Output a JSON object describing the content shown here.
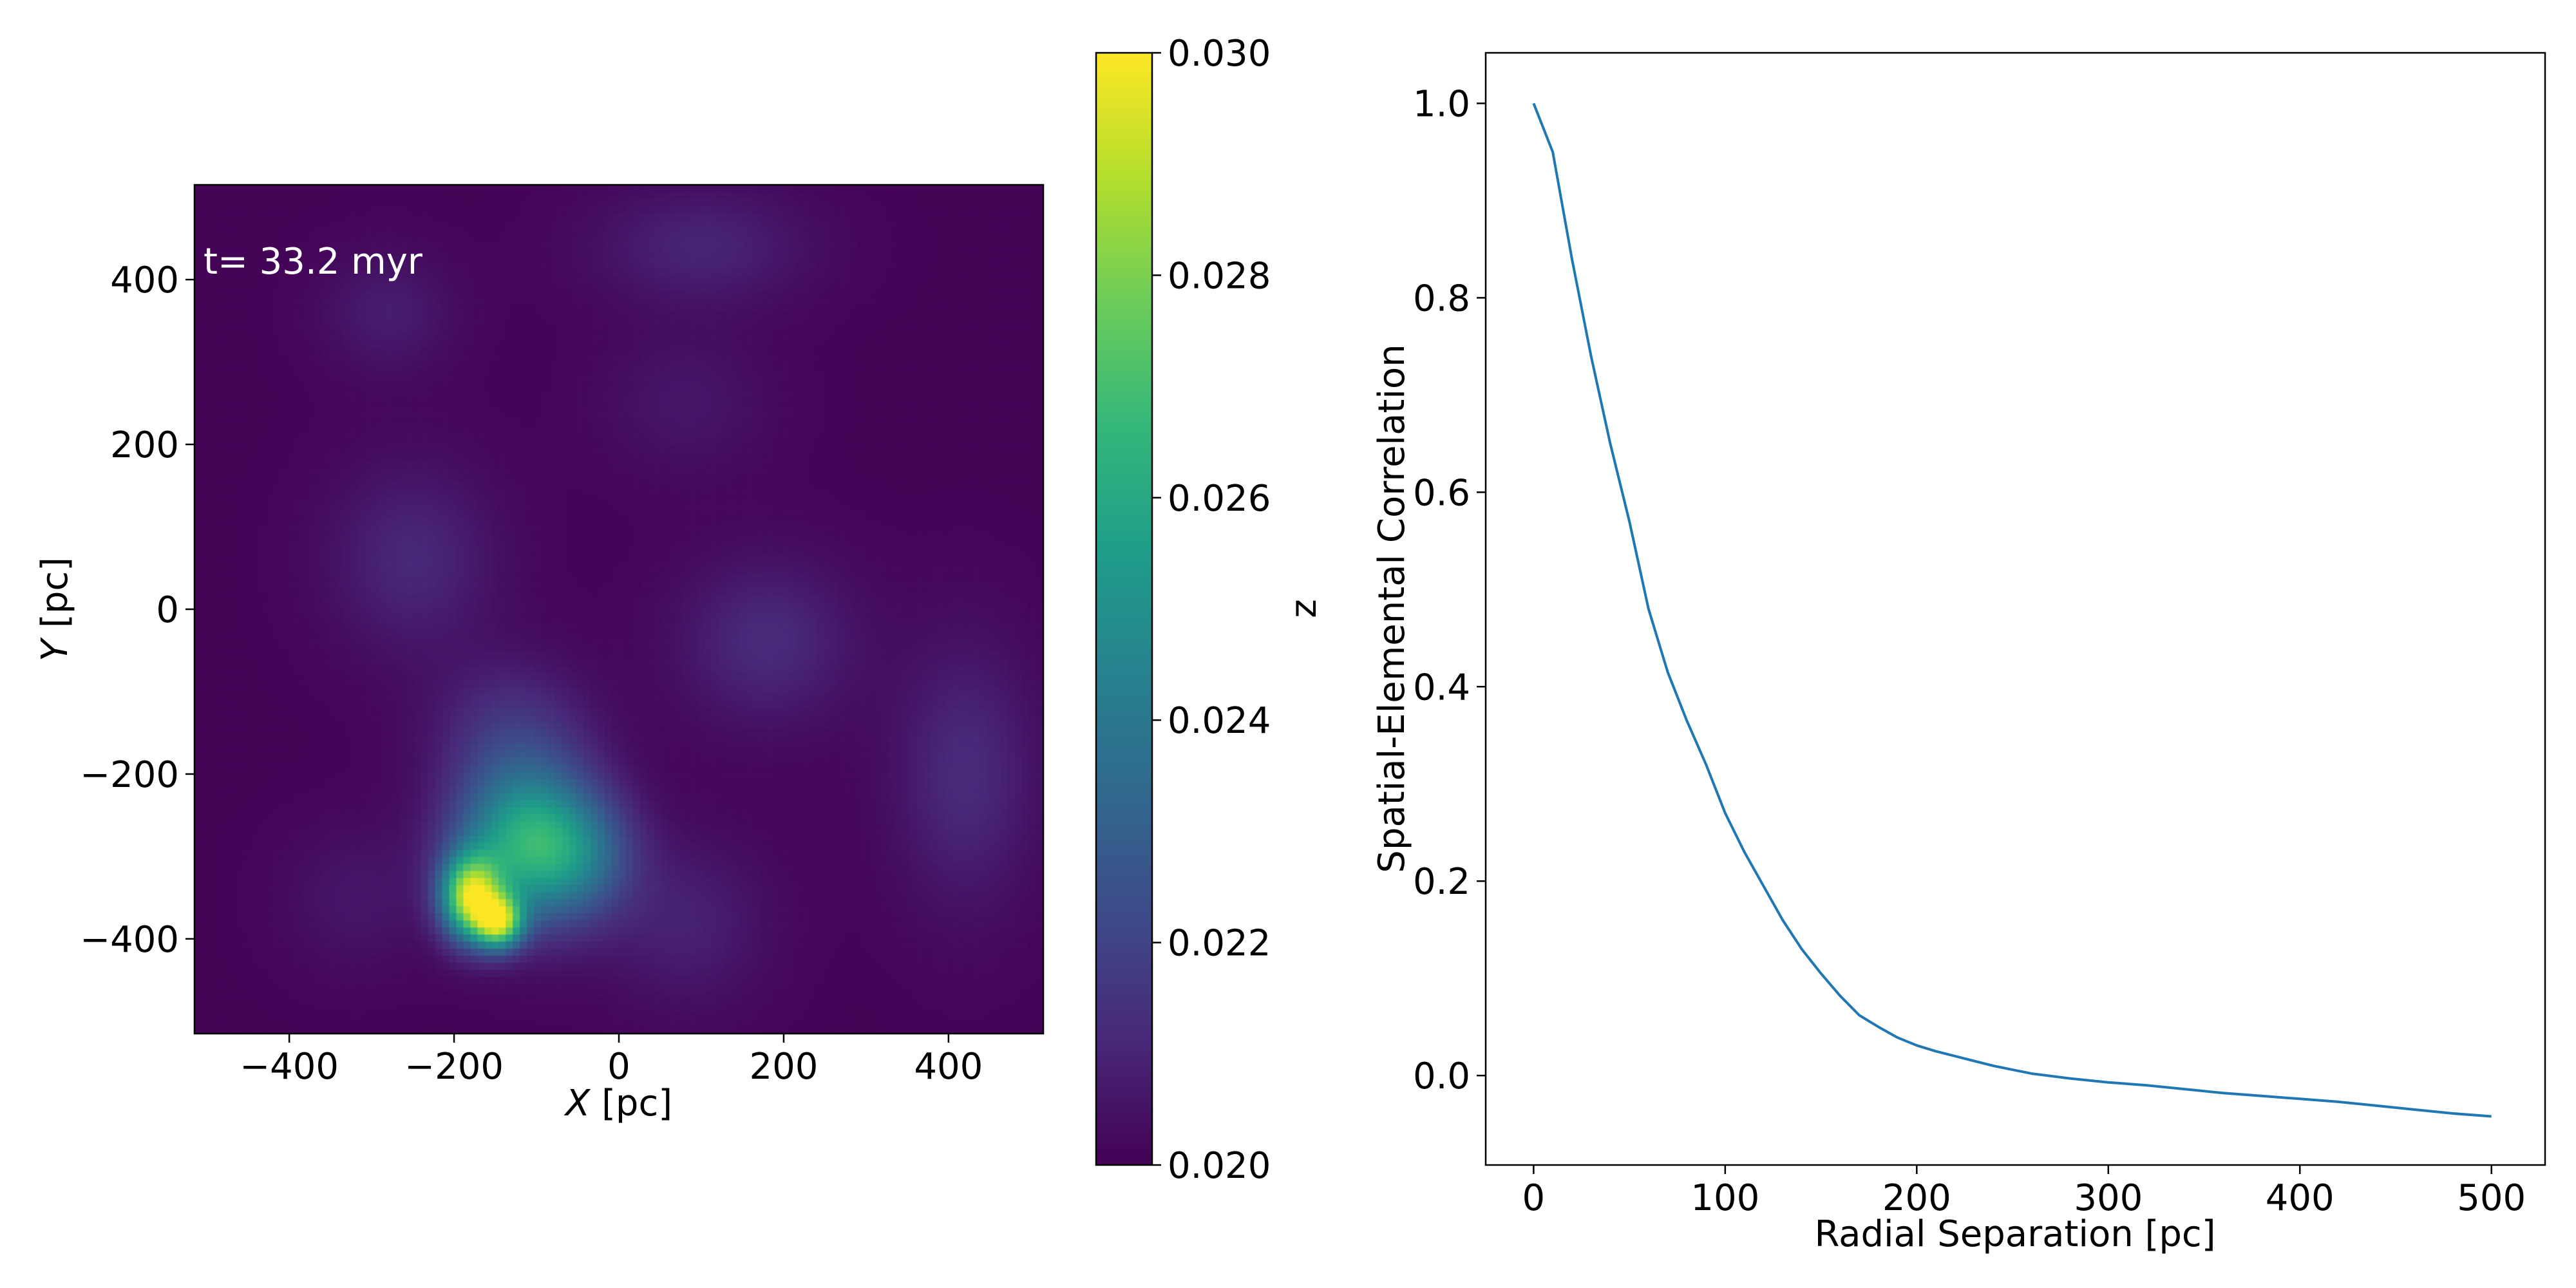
{
  "chart_data": [
    {
      "type": "heatmap",
      "annotation": "t= 33.2 myr",
      "xlabel_var": "X",
      "xlabel_unit": " [pc]",
      "ylabel_var": "Y",
      "ylabel_unit": " [pc]",
      "xlim": [
        -515,
        515
      ],
      "ylim": [
        -515,
        515
      ],
      "x_ticks": [
        -400,
        -200,
        0,
        200,
        400
      ],
      "y_ticks": [
        -400,
        -200,
        0,
        200,
        400
      ],
      "colormap": "viridis",
      "colorbar": {
        "label": "z",
        "range": [
          0.02,
          0.03
        ],
        "ticks": [
          "0.020",
          "0.022",
          "0.024",
          "0.026",
          "0.028",
          "0.030"
        ]
      },
      "background_value": 0.0201,
      "features": [
        {
          "x": -110,
          "y": -285,
          "sx": 60,
          "sy": 65,
          "value": 0.0262
        },
        {
          "x": -180,
          "y": -350,
          "sx": 25,
          "sy": 35,
          "value": 0.028
        },
        {
          "x": -145,
          "y": -380,
          "sx": 20,
          "sy": 22,
          "value": 0.0271
        },
        {
          "x": -130,
          "y": -150,
          "sx": 65,
          "sy": 60,
          "value": 0.0214
        },
        {
          "x": -40,
          "y": -300,
          "sx": 45,
          "sy": 50,
          "value": 0.0218
        },
        {
          "x": -250,
          "y": 60,
          "sx": 70,
          "sy": 80,
          "value": 0.0211
        },
        {
          "x": 180,
          "y": -40,
          "sx": 75,
          "sy": 70,
          "value": 0.0212
        },
        {
          "x": 100,
          "y": 440,
          "sx": 90,
          "sy": 50,
          "value": 0.021
        },
        {
          "x": -280,
          "y": 360,
          "sx": 55,
          "sy": 50,
          "value": 0.0208
        },
        {
          "x": 80,
          "y": -380,
          "sx": 70,
          "sy": 70,
          "value": 0.0209
        },
        {
          "x": 420,
          "y": -200,
          "sx": 60,
          "sy": 110,
          "value": 0.0212
        },
        {
          "x": -320,
          "y": -350,
          "sx": 60,
          "sy": 60,
          "value": 0.0206
        },
        {
          "x": 80,
          "y": 250,
          "sx": 70,
          "sy": 60,
          "value": 0.0206
        }
      ]
    },
    {
      "type": "line",
      "xlabel": "Radial Separation [pc]",
      "ylabel": "Spatial-Elemental Correlation",
      "xlim": [
        -25,
        528
      ],
      "ylim": [
        -0.092,
        1.052
      ],
      "x_ticks": [
        0,
        100,
        200,
        300,
        400,
        500
      ],
      "y_ticks": [
        "0.0",
        "0.2",
        "0.4",
        "0.6",
        "0.8",
        "1.0"
      ],
      "grid": false,
      "line_color": "#1f77b4",
      "x": [
        0,
        10,
        20,
        30,
        40,
        50,
        60,
        70,
        80,
        90,
        100,
        110,
        120,
        130,
        140,
        150,
        160,
        170,
        180,
        190,
        200,
        210,
        220,
        230,
        240,
        250,
        260,
        280,
        300,
        320,
        340,
        360,
        380,
        400,
        420,
        440,
        460,
        480,
        500
      ],
      "y": [
        1.0,
        0.95,
        0.84,
        0.74,
        0.65,
        0.57,
        0.48,
        0.415,
        0.365,
        0.32,
        0.27,
        0.23,
        0.195,
        0.16,
        0.13,
        0.105,
        0.082,
        0.062,
        0.05,
        0.039,
        0.031,
        0.025,
        0.02,
        0.015,
        0.01,
        0.006,
        0.002,
        -0.003,
        -0.007,
        -0.01,
        -0.014,
        -0.018,
        -0.021,
        -0.024,
        -0.027,
        -0.031,
        -0.035,
        -0.039,
        -0.042
      ]
    }
  ]
}
